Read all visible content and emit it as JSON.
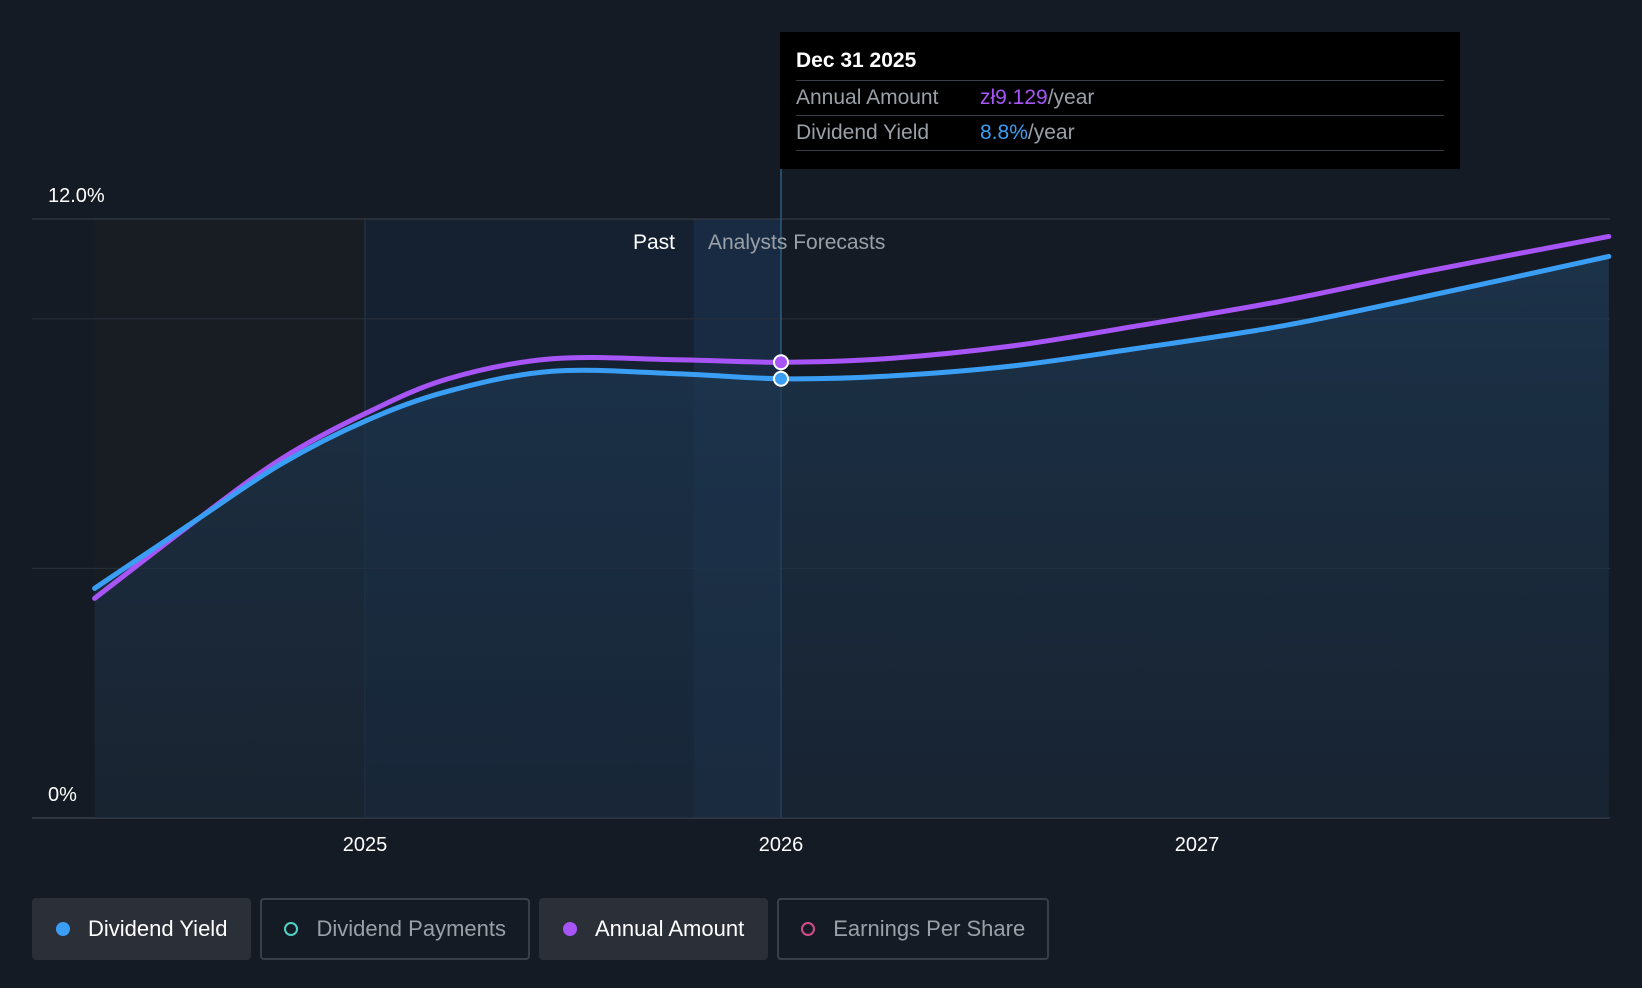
{
  "chart_data": {
    "type": "line",
    "title": "",
    "x_ticks": [
      "2025",
      "2026",
      "2027"
    ],
    "y_ticks": [
      "12.0%",
      "0%"
    ],
    "ylim": [
      0,
      12
    ],
    "regions": {
      "past_label": "Past",
      "forecast_label": "Analysts Forecasts"
    },
    "series": [
      {
        "name": "Annual Amount",
        "color": "#a855f7",
        "x": [
          2024.35,
          2024.6,
          2024.8,
          2025.0,
          2025.2,
          2025.45,
          2025.75,
          2026.0,
          2026.25,
          2026.55,
          2026.85,
          2027.2,
          2027.55,
          2027.99
        ],
        "values": [
          4.4,
          6.0,
          7.2,
          8.1,
          8.8,
          9.2,
          9.18,
          9.13,
          9.2,
          9.45,
          9.85,
          10.35,
          10.95,
          11.65
        ]
      },
      {
        "name": "Dividend Yield",
        "color": "#3b9ef5",
        "x": [
          2024.35,
          2024.6,
          2024.8,
          2025.0,
          2025.2,
          2025.45,
          2025.75,
          2026.0,
          2026.25,
          2026.55,
          2026.85,
          2027.2,
          2027.55,
          2027.99
        ],
        "values": [
          4.6,
          6.0,
          7.1,
          7.95,
          8.55,
          8.95,
          8.9,
          8.8,
          8.85,
          9.05,
          9.4,
          9.85,
          10.45,
          11.25
        ]
      }
    ],
    "tooltip": {
      "date": "Dec 31 2025",
      "x": 2026.0,
      "rows": [
        {
          "label": "Annual Amount",
          "value": "zł9.129",
          "unit": "/year"
        },
        {
          "label": "Dividend Yield",
          "value": "8.8%",
          "unit": "/year"
        }
      ]
    }
  },
  "legend": [
    {
      "label": "Dividend Yield",
      "color": "#3b9ef5",
      "active": true
    },
    {
      "label": "Dividend Payments",
      "color": "#4fd1c5",
      "active": false
    },
    {
      "label": "Annual Amount",
      "color": "#a855f7",
      "active": true
    },
    {
      "label": "Earnings Per Share",
      "color": "#d14d8a",
      "active": false
    }
  ]
}
